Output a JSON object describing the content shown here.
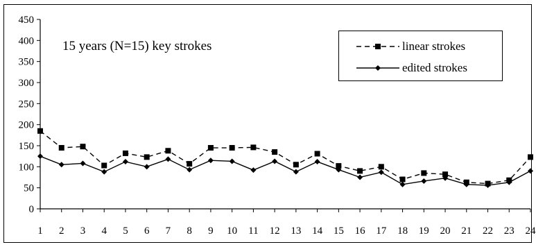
{
  "chart_data": {
    "type": "line",
    "title": "15 years (N=15) key strokes",
    "xlabel": "",
    "ylabel": "",
    "x": [
      1,
      2,
      3,
      4,
      5,
      6,
      7,
      8,
      9,
      10,
      11,
      12,
      13,
      14,
      15,
      16,
      17,
      18,
      19,
      20,
      21,
      22,
      23,
      24
    ],
    "ylim": [
      0,
      450
    ],
    "yticks": [
      0,
      50,
      100,
      150,
      200,
      250,
      300,
      350,
      400,
      450
    ],
    "grid": false,
    "legend": "top-right",
    "series": [
      {
        "name": "linear strokes",
        "style": "dashed",
        "marker": "square",
        "color": "#000000",
        "values": [
          185,
          145,
          148,
          103,
          132,
          123,
          138,
          107,
          145,
          145,
          146,
          135,
          105,
          131,
          102,
          90,
          100,
          70,
          85,
          82,
          63,
          60,
          68,
          123
        ]
      },
      {
        "name": "edited strokes",
        "style": "solid",
        "marker": "diamond",
        "color": "#000000",
        "values": [
          125,
          105,
          108,
          88,
          112,
          100,
          118,
          93,
          115,
          113,
          92,
          113,
          88,
          112,
          93,
          75,
          87,
          58,
          66,
          73,
          58,
          56,
          63,
          90
        ]
      }
    ]
  }
}
